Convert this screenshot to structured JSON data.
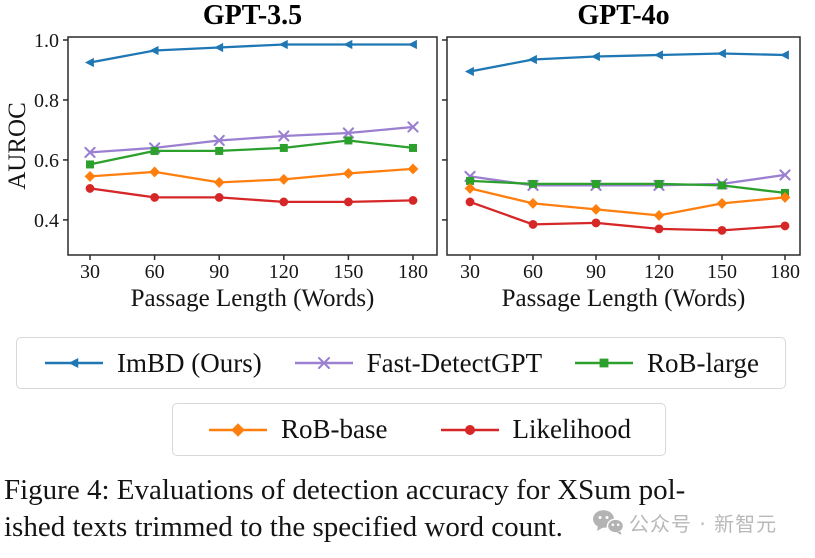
{
  "figure": {
    "ylabel": "AUROC",
    "xlabel": "Passage Length (Words)",
    "legend": {
      "rows": [
        {
          "items": [
            {
              "label": "ImBD (Ours)",
              "color": "#1f77b4",
              "marker": "triangle-left"
            },
            {
              "label": "Fast-DetectGPT",
              "color": "#9b7fd0",
              "marker": "x"
            },
            {
              "label": "RoB-large",
              "color": "#2ca02c",
              "marker": "square"
            }
          ]
        },
        {
          "items": [
            {
              "label": "RoB-base",
              "color": "#ff7f0e",
              "marker": "diamond"
            },
            {
              "label": "Likelihood",
              "color": "#d62728",
              "marker": "circle"
            }
          ]
        }
      ]
    }
  },
  "chart_data": [
    {
      "type": "line",
      "title": "GPT-3.5",
      "xlabel": "Passage Length (Words)",
      "ylabel": "AUROC",
      "x": [
        30,
        60,
        90,
        120,
        150,
        180
      ],
      "xticks": [
        "30",
        "60",
        "90",
        "120",
        "150",
        "180"
      ],
      "yticks": [
        "0.4",
        "0.6",
        "0.8",
        "1.0"
      ],
      "ylim": [
        0.283,
        1.01
      ],
      "grid": false,
      "series": [
        {
          "name": "ImBD (Ours)",
          "color": "#1f77b4",
          "marker": "triangle-left",
          "values": [
            0.925,
            0.965,
            0.975,
            0.985,
            0.985,
            0.985
          ]
        },
        {
          "name": "Fast-DetectGPT",
          "color": "#9b7fd0",
          "marker": "x",
          "values": [
            0.625,
            0.64,
            0.665,
            0.68,
            0.69,
            0.71
          ]
        },
        {
          "name": "RoB-large",
          "color": "#2ca02c",
          "marker": "square",
          "values": [
            0.585,
            0.63,
            0.63,
            0.64,
            0.665,
            0.64
          ]
        },
        {
          "name": "RoB-base",
          "color": "#ff7f0e",
          "marker": "diamond",
          "values": [
            0.545,
            0.56,
            0.525,
            0.535,
            0.555,
            0.57
          ]
        },
        {
          "name": "Likelihood",
          "color": "#d62728",
          "marker": "circle",
          "values": [
            0.505,
            0.475,
            0.475,
            0.46,
            0.46,
            0.465
          ]
        }
      ]
    },
    {
      "type": "line",
      "title": "GPT-4o",
      "xlabel": "Passage Length (Words)",
      "ylabel": "",
      "x": [
        30,
        60,
        90,
        120,
        150,
        180
      ],
      "xticks": [
        "30",
        "60",
        "90",
        "120",
        "150",
        "180"
      ],
      "yticks": [
        "0.4",
        "0.6",
        "0.8",
        "1.0"
      ],
      "ylim": [
        0.283,
        1.01
      ],
      "grid": false,
      "series": [
        {
          "name": "ImBD (Ours)",
          "color": "#1f77b4",
          "marker": "triangle-left",
          "values": [
            0.895,
            0.935,
            0.945,
            0.95,
            0.955,
            0.95
          ]
        },
        {
          "name": "Fast-DetectGPT",
          "color": "#9b7fd0",
          "marker": "x",
          "values": [
            0.545,
            0.515,
            0.515,
            0.515,
            0.52,
            0.55
          ]
        },
        {
          "name": "RoB-large",
          "color": "#2ca02c",
          "marker": "square",
          "values": [
            0.53,
            0.52,
            0.52,
            0.52,
            0.515,
            0.49
          ]
        },
        {
          "name": "RoB-base",
          "color": "#ff7f0e",
          "marker": "diamond",
          "values": [
            0.505,
            0.455,
            0.435,
            0.415,
            0.455,
            0.475
          ]
        },
        {
          "name": "Likelihood",
          "color": "#d62728",
          "marker": "circle",
          "values": [
            0.46,
            0.385,
            0.39,
            0.37,
            0.365,
            0.38
          ]
        }
      ]
    }
  ],
  "caption": {
    "line1": "Figure 4: Evaluations of detection accuracy for XSum pol-",
    "line2": "ished texts trimmed to the specified word count."
  },
  "watermark": {
    "icon": "wechat-icon",
    "text": "公众号 · 新智元"
  }
}
